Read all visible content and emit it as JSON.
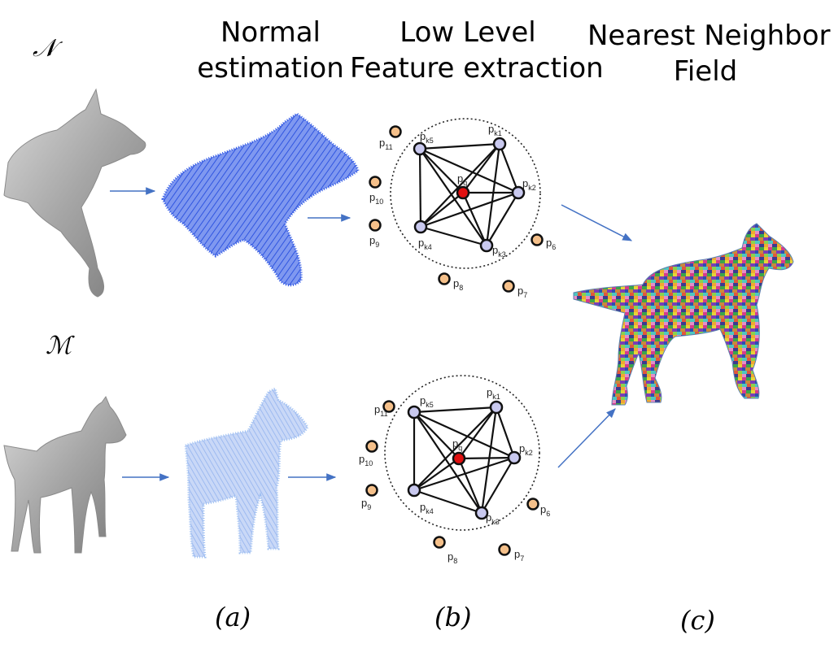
{
  "columns": {
    "normal": {
      "line1": "Normal",
      "line2": "estimation"
    },
    "feature": {
      "line1": "Low Level",
      "line2": "Feature extraction"
    },
    "nnf": {
      "line1": "Nearest Neighbor",
      "line2": "Field"
    }
  },
  "meshes": {
    "top": "𝒩",
    "bottom": "ℳ"
  },
  "captions": {
    "a": "(a)",
    "b": "(b)",
    "c": "(c)"
  },
  "graph_points": {
    "center": {
      "main": "p",
      "sub": "q"
    },
    "neighbors": [
      {
        "main": "p",
        "sub": "k1"
      },
      {
        "main": "p",
        "sub": "k2"
      },
      {
        "main": "p",
        "sub": "k3"
      },
      {
        "main": "p",
        "sub": "k4"
      },
      {
        "main": "p",
        "sub": "k5"
      }
    ],
    "outliers": [
      {
        "main": "p",
        "sub": "6"
      },
      {
        "main": "p",
        "sub": "7"
      },
      {
        "main": "p",
        "sub": "8"
      },
      {
        "main": "p",
        "sub": "9"
      },
      {
        "main": "p",
        "sub": "10"
      },
      {
        "main": "p",
        "sub": "11"
      }
    ]
  },
  "colors": {
    "arrow": "#4472c4",
    "center_point": "#e01010",
    "neighbor_point": "#c9c9ef",
    "outlier_point": "#f5c08a",
    "mesh_gray": "#9a9a9a",
    "normals_blue": "#4a6ee8"
  }
}
